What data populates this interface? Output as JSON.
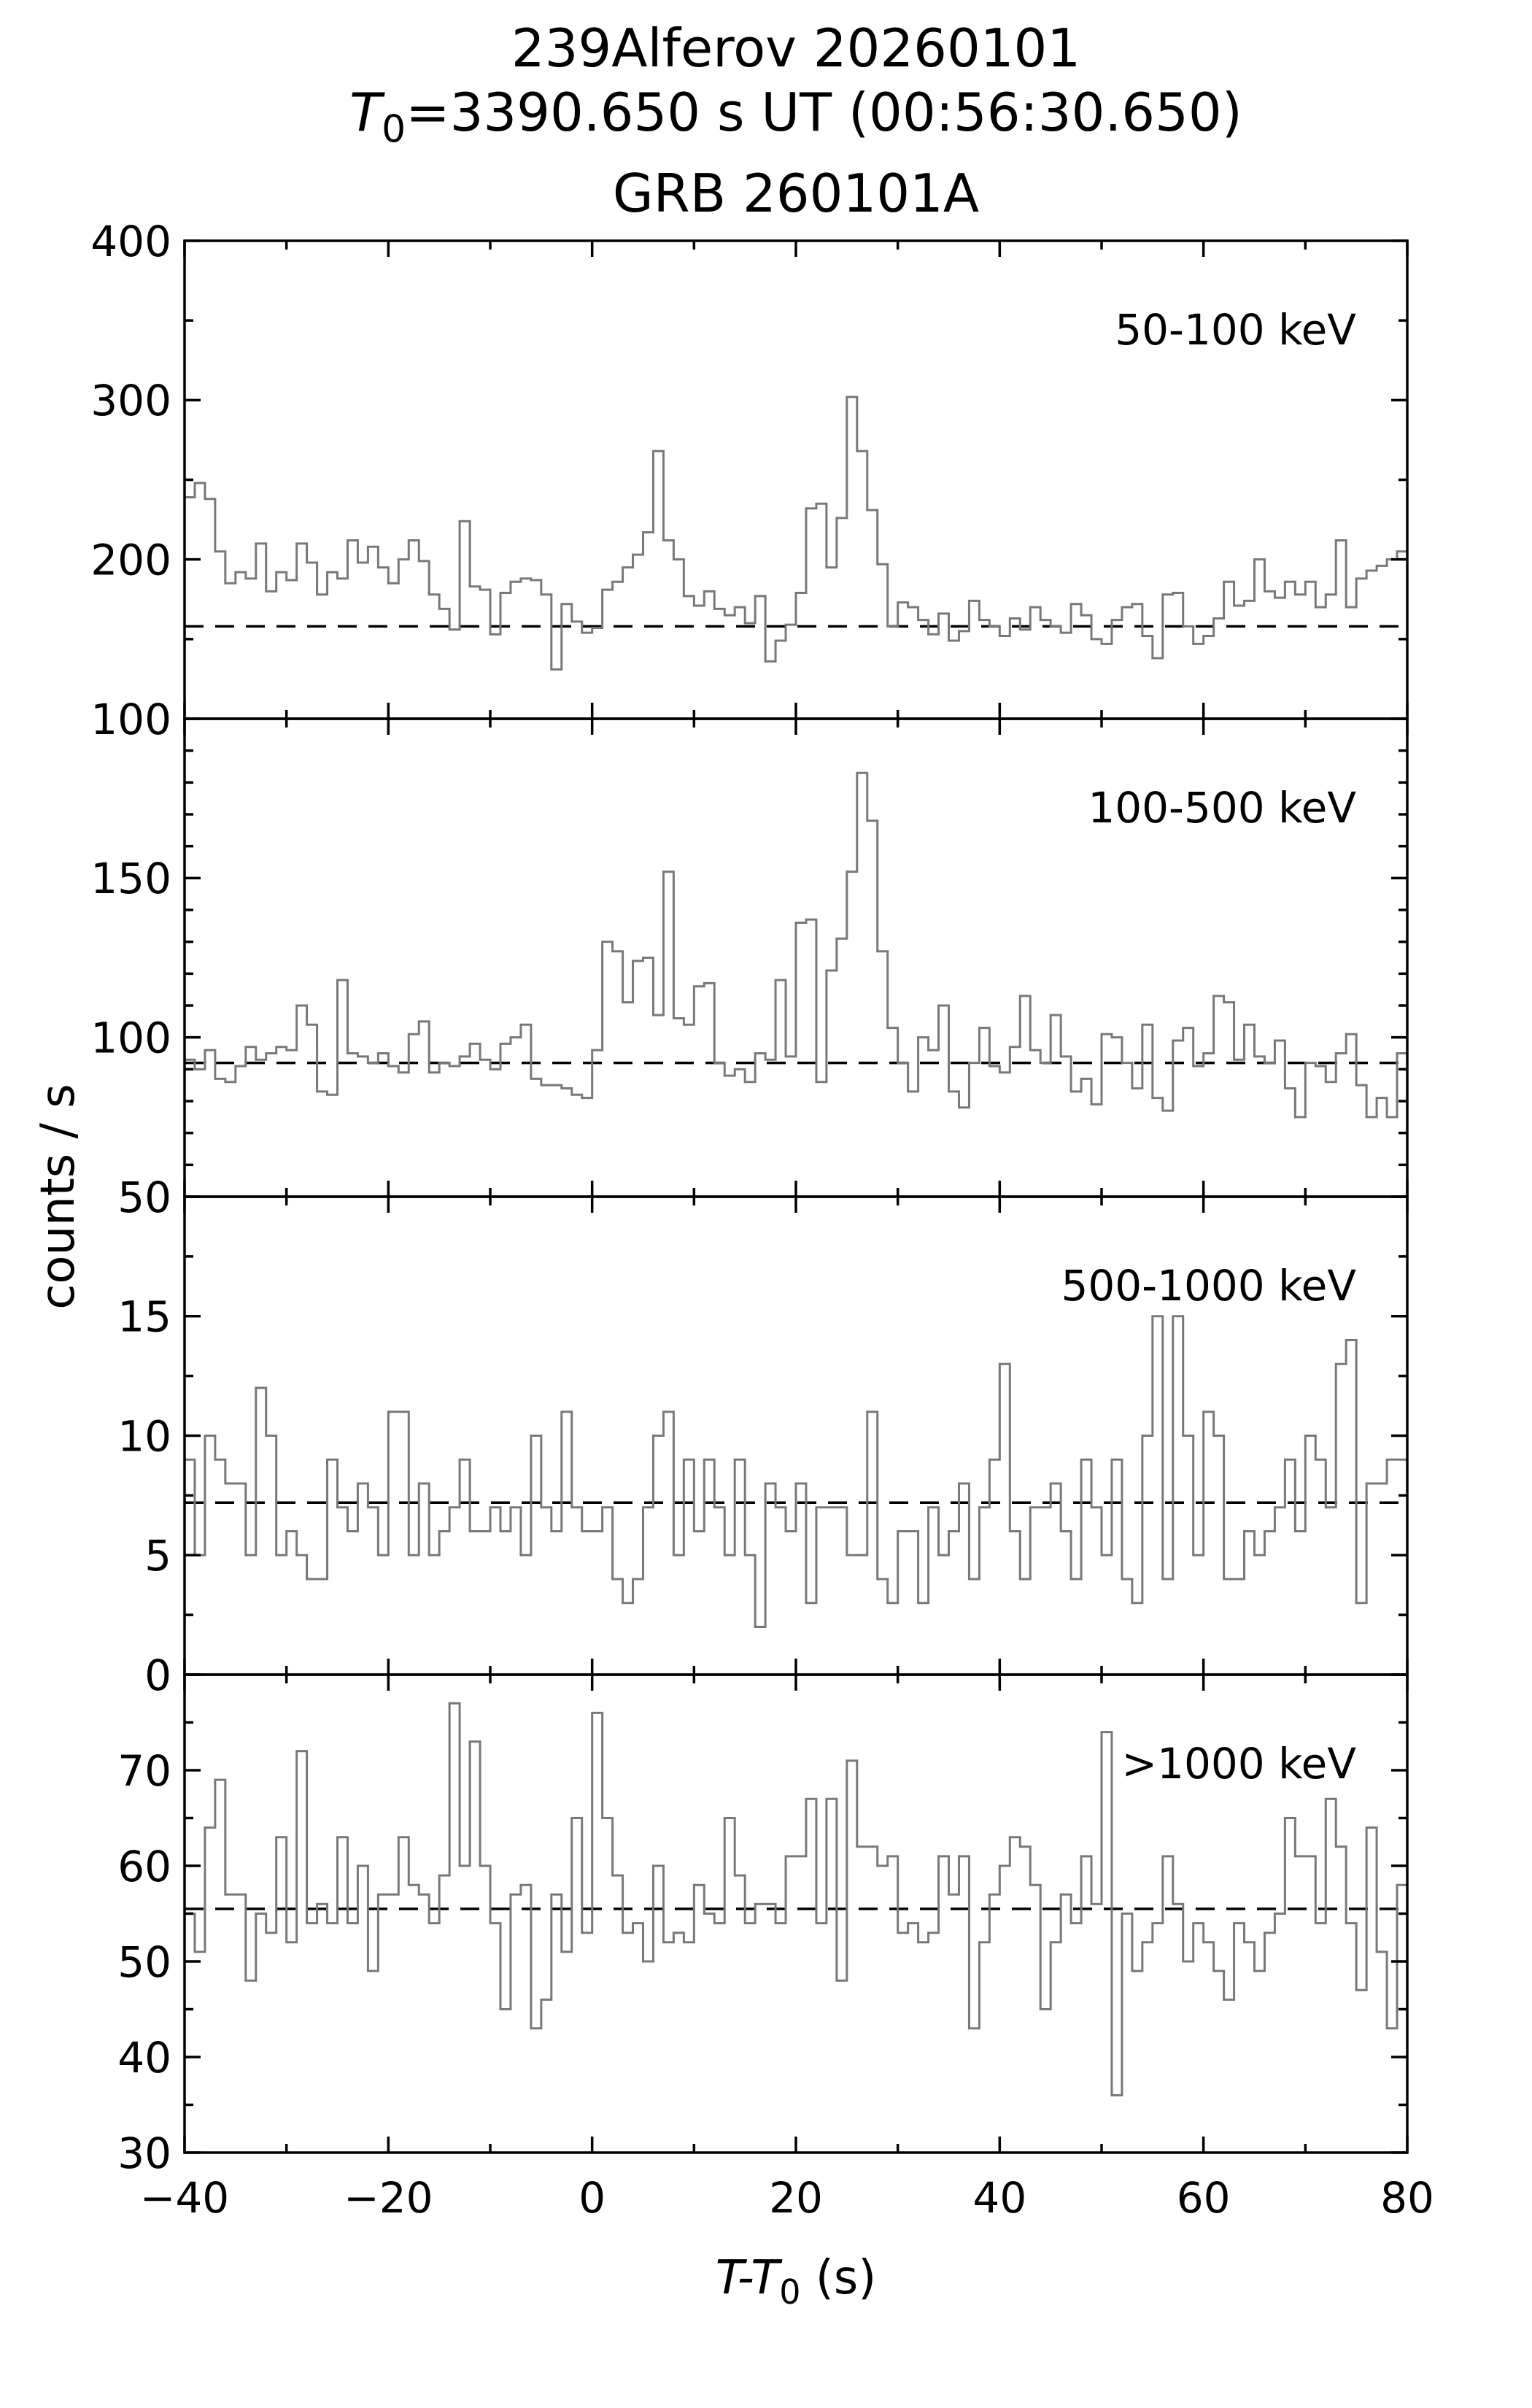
{
  "title": {
    "line1": "239Alferov 20260101",
    "line2": {
      "italic": "T",
      "sub": "0",
      "rest": "=3390.650 s UT (00:56:30.650)"
    },
    "line3": "GRB 260101A"
  },
  "axes": {
    "xlabel": {
      "italic": "T-T",
      "sub": "0",
      "rest": " (s)"
    },
    "ylabel": "counts / s"
  },
  "colors": {
    "line": "#787878",
    "axis": "#000000",
    "baseline": "#000000",
    "background": "#ffffff"
  },
  "chart_data": {
    "type": "line",
    "subtype": "step-histogram-4-stacked-panels",
    "x": {
      "lim": [
        -40,
        80
      ],
      "bin_width_s": 1,
      "major_ticks": [
        -40,
        -20,
        0,
        20,
        40,
        60,
        80
      ],
      "major_tick_labels": [
        "−40",
        "−20",
        "0",
        "20",
        "40",
        "60",
        "80"
      ],
      "minor_step": 10
    },
    "panels": [
      {
        "label": "50-100 keV",
        "ylim": [
          100,
          400
        ],
        "ymajor": [
          100,
          200,
          300,
          400
        ],
        "ymajor_labels": [
          "100",
          "200",
          "300",
          "400"
        ],
        "yminor_step": 50,
        "baseline": 158,
        "values": [
          239,
          248,
          238,
          205,
          185,
          192,
          188,
          210,
          180,
          192,
          187,
          210,
          198,
          178,
          192,
          188,
          212,
          198,
          208,
          195,
          185,
          200,
          212,
          199,
          178,
          169,
          156,
          224,
          183,
          181,
          153,
          179,
          186,
          188,
          187,
          178,
          131,
          172,
          161,
          154,
          157,
          181,
          186,
          195,
          203,
          217,
          268,
          212,
          200,
          177,
          171,
          180,
          169,
          165,
          170,
          160,
          177,
          136,
          149,
          159,
          179,
          232,
          235,
          195,
          226,
          302,
          268,
          231,
          197,
          158,
          173,
          170,
          162,
          153,
          166,
          149,
          155,
          174,
          162,
          158,
          152,
          163,
          156,
          170,
          162,
          158,
          154,
          172,
          165,
          150,
          147,
          162,
          170,
          172,
          152,
          138,
          178,
          179,
          158,
          147,
          152,
          163,
          186,
          171,
          174,
          200,
          180,
          176,
          186,
          178,
          186,
          170,
          178,
          212,
          170,
          188,
          193,
          196,
          200,
          205
        ]
      },
      {
        "label": "100-500 keV",
        "ylim": [
          50,
          200
        ],
        "ymajor": [
          50,
          100,
          150,
          200
        ],
        "ymajor_labels": [
          "50",
          "100",
          "150",
          ""
        ],
        "yminor_step": 10,
        "baseline": 92,
        "values": [
          93,
          90,
          96,
          87,
          86,
          91,
          97,
          93,
          95,
          97,
          96,
          110,
          104,
          83,
          82,
          118,
          95,
          94,
          92,
          95,
          91,
          89,
          101,
          105,
          89,
          92,
          91,
          94,
          98,
          93,
          90,
          98,
          100,
          104,
          87,
          85,
          85,
          84,
          82,
          81,
          96,
          130,
          127,
          111,
          124,
          125,
          107,
          152,
          106,
          104,
          116,
          117,
          92,
          88,
          90,
          86,
          95,
          93,
          118,
          94,
          136,
          137,
          86,
          121,
          131,
          152,
          183,
          168,
          127,
          103,
          92,
          83,
          100,
          96,
          110,
          83,
          78,
          92,
          103,
          91,
          89,
          97,
          113,
          96,
          92,
          107,
          94,
          83,
          87,
          79,
          101,
          100,
          92,
          84,
          104,
          81,
          77,
          99,
          103,
          91,
          95,
          113,
          111,
          93,
          104,
          94,
          92,
          99,
          84,
          75,
          92,
          91,
          86,
          95,
          101,
          85,
          75,
          81,
          75,
          95
        ]
      },
      {
        "label": "500-1000 keV",
        "ylim": [
          0,
          20
        ],
        "ymajor": [
          0,
          5,
          10,
          15,
          20
        ],
        "ymajor_labels": [
          "0",
          "5",
          "10",
          "15",
          ""
        ],
        "yminor_step": 2.5,
        "baseline": 7.2,
        "values": [
          9,
          5,
          10,
          9,
          8,
          8,
          5,
          12,
          10,
          5,
          6,
          5,
          4,
          4,
          9,
          7,
          6,
          8,
          7,
          5,
          11,
          11,
          5,
          8,
          5,
          6,
          7,
          9,
          6,
          6,
          7,
          6,
          7,
          5,
          10,
          7,
          6,
          11,
          7,
          6,
          6,
          7,
          4,
          3,
          4,
          7,
          10,
          11,
          5,
          9,
          6,
          9,
          7,
          5,
          9,
          5,
          2,
          8,
          7,
          6,
          8,
          3,
          7,
          7,
          7,
          5,
          5,
          11,
          4,
          3,
          6,
          6,
          3,
          7,
          5,
          6,
          8,
          4,
          7,
          9,
          13,
          6,
          4,
          7,
          7,
          8,
          6,
          4,
          9,
          7,
          5,
          9,
          4,
          3,
          10,
          15,
          4,
          15,
          10,
          5,
          11,
          10,
          4,
          4,
          6,
          5,
          6,
          7,
          9,
          6,
          10,
          9,
          7,
          13,
          14,
          3,
          8,
          8,
          9,
          9
        ]
      },
      {
        "label": ">1000 keV",
        "ylim": [
          30,
          80
        ],
        "ymajor": [
          30,
          40,
          50,
          60,
          70,
          80
        ],
        "ymajor_labels": [
          "30",
          "40",
          "50",
          "60",
          "70",
          ""
        ],
        "yminor_step": 5,
        "baseline": 55.5,
        "values": [
          55,
          51,
          64,
          69,
          57,
          57,
          48,
          55,
          53,
          63,
          52,
          72,
          54,
          56,
          54,
          63,
          54,
          60,
          49,
          57,
          57,
          63,
          58,
          57,
          54,
          59,
          77,
          60,
          73,
          60,
          54,
          45,
          57,
          58,
          43,
          46,
          57,
          51,
          65,
          53,
          76,
          65,
          59,
          53,
          54,
          50,
          60,
          52,
          53,
          52,
          58,
          55,
          54,
          65,
          59,
          54,
          56,
          56,
          54,
          61,
          61,
          67,
          54,
          67,
          48,
          71,
          62,
          62,
          60,
          61,
          53,
          54,
          52,
          53,
          61,
          57,
          61,
          43,
          52,
          57,
          60,
          63,
          62,
          58,
          45,
          52,
          57,
          54,
          61,
          56,
          74,
          36,
          55,
          49,
          52,
          54,
          61,
          56,
          50,
          54,
          52,
          49,
          46,
          54,
          52,
          49,
          53,
          55,
          65,
          61,
          61,
          54,
          67,
          62,
          54,
          47,
          64,
          51,
          43,
          58
        ]
      }
    ]
  }
}
